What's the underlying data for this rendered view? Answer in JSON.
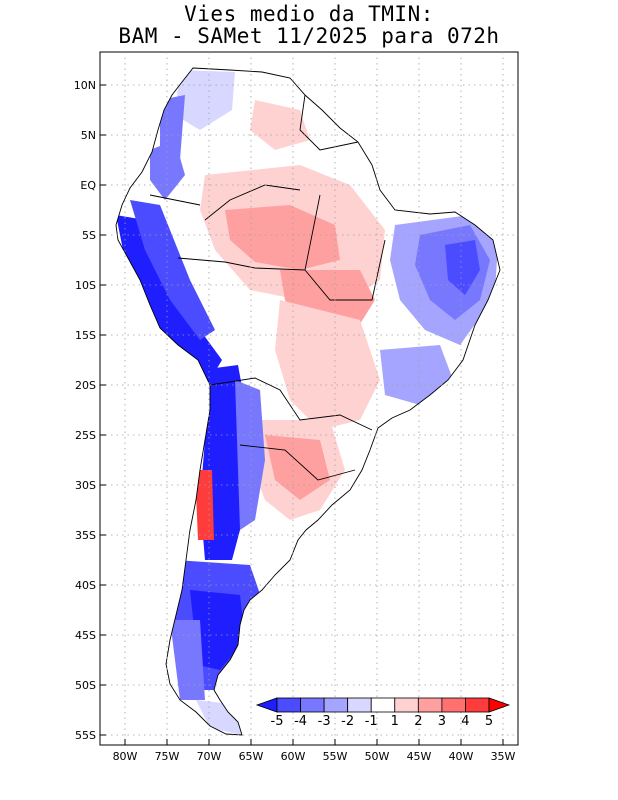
{
  "title": {
    "line1": "Vies medio da TMIN:",
    "line2": "BAM - SAMet 11/2025  para 072h"
  },
  "axes": {
    "lat_labels": [
      "10N",
      "5N",
      "EQ",
      "5S",
      "10S",
      "15S",
      "20S",
      "25S",
      "30S",
      "35S",
      "40S",
      "45S",
      "50S",
      "55S"
    ],
    "lon_labels": [
      "80W",
      "75W",
      "70W",
      "65W",
      "60W",
      "55W",
      "50W",
      "45W",
      "40W",
      "35W"
    ],
    "lat_range": [
      -56,
      13
    ],
    "lon_range": [
      -84,
      -34
    ],
    "grid": true
  },
  "colorbar": {
    "labels": [
      "-5",
      "-4",
      "-3",
      "-2",
      "-1",
      "1",
      "2",
      "3",
      "4",
      "5"
    ],
    "colors": [
      "#1e1eff",
      "#4b4bff",
      "#7878ff",
      "#a5a5ff",
      "#d7d7ff",
      "#ffffff",
      "#ffd2d2",
      "#ffa0a0",
      "#ff7070",
      "#ff3c3c",
      "#ff0000"
    ]
  },
  "colors": {
    "land_neutral": "#ffffff",
    "border": "#000000",
    "grid": "#a0a0a0"
  }
}
